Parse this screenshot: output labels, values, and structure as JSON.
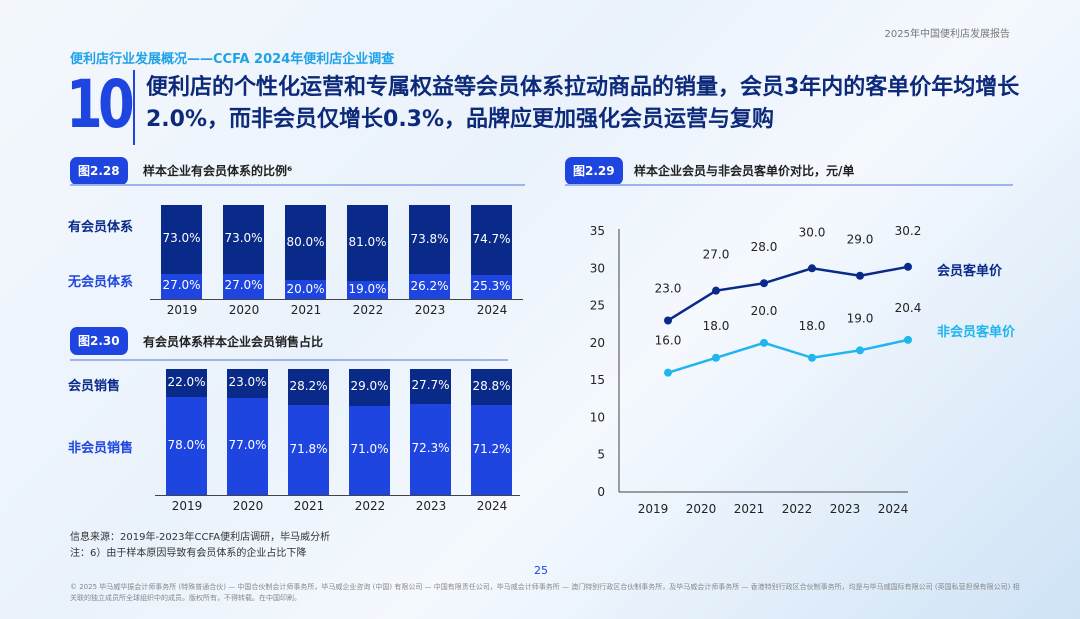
{
  "header": {
    "report": "2025年中国便利店发展报告",
    "section": "便利店行业发展概况——CCFA 2024年便利店企业调查",
    "number": "10",
    "headline": "便利店的个性化运营和专属权益等会员体系拉动商品的销量，会员3年内的客单价年均增长2.0%，而非会员仅增长0.3%，品牌应更加强化会员运营与复购"
  },
  "colors": {
    "dark": "#0a2a8a",
    "bright": "#1f45e0",
    "light_line": "#1fb5ee"
  },
  "chart_data": [
    {
      "id": "fig228",
      "tag": "图2.28",
      "title": "样本企业有会员体系的比例⁶",
      "type": "bar",
      "stacked": true,
      "categories": [
        "2019",
        "2020",
        "2021",
        "2022",
        "2023",
        "2024"
      ],
      "series": [
        {
          "name": "无会员体系",
          "values": [
            27.0,
            27.0,
            20.0,
            19.0,
            26.2,
            25.3
          ],
          "labels": [
            "27.0%",
            "27.0%",
            "20.0%",
            "19.0%",
            "26.2%",
            "25.3%"
          ]
        },
        {
          "name": "有会员体系",
          "values": [
            73.0,
            73.0,
            80.0,
            81.0,
            73.8,
            74.7
          ],
          "labels": [
            "73.0%",
            "73.0%",
            "80.0%",
            "81.0%",
            "73.8%",
            "74.7%"
          ]
        }
      ]
    },
    {
      "id": "fig230",
      "tag": "图2.30",
      "title": "有会员体系样本企业会员销售占比",
      "type": "bar",
      "stacked": true,
      "categories": [
        "2019",
        "2020",
        "2021",
        "2022",
        "2023",
        "2024"
      ],
      "series": [
        {
          "name": "非会员销售",
          "values": [
            78.0,
            77.0,
            71.8,
            71.0,
            72.3,
            71.2
          ],
          "labels": [
            "78.0%",
            "77.0%",
            "71.8%",
            "71.0%",
            "72.3%",
            "71.2%"
          ]
        },
        {
          "name": "会员销售",
          "values": [
            22.0,
            23.0,
            28.2,
            29.0,
            27.7,
            28.8
          ],
          "labels": [
            "22.0%",
            "23.0%",
            "28.2%",
            "29.0%",
            "27.7%",
            "28.8%"
          ]
        }
      ]
    },
    {
      "id": "fig229",
      "tag": "图2.29",
      "title": "样本企业会员与非会员客单价对比，元/单",
      "type": "line",
      "categories": [
        "2019",
        "2020",
        "2021",
        "2022",
        "2023",
        "2024"
      ],
      "ylim": [
        0,
        35
      ],
      "yticks": [
        "0",
        "5",
        "10",
        "15",
        "20",
        "25",
        "30",
        "35"
      ],
      "series": [
        {
          "name": "会员客单价",
          "values": [
            23.0,
            27.0,
            28.0,
            30.0,
            29.0,
            30.2
          ],
          "labels": [
            "23.0",
            "27.0",
            "28.0",
            "30.0",
            "29.0",
            "30.2"
          ]
        },
        {
          "name": "非会员客单价",
          "values": [
            16.0,
            18.0,
            20.0,
            18.0,
            19.0,
            20.4
          ],
          "labels": [
            "16.0",
            "18.0",
            "20.0",
            "18.0",
            "19.0",
            "20.4"
          ]
        }
      ]
    }
  ],
  "footer": {
    "source": "信息来源：2019年-2023年CCFA便利店调研，毕马威分析",
    "note": "注：6）由于样本原因导致有会员体系的企业占比下降",
    "page": "25",
    "legal": "© 2025 毕马威华振会计师事务所 (特殊普通合伙) — 中国合伙制会计师事务所，毕马威企业咨询 (中国) 有限公司 — 中国有限责任公司，毕马威会计师事务所 — 澳门特别行政区合伙制事务所，及毕马威会计师事务所 — 香港特别行政区合伙制事务所，均是与毕马威国际有限公司 (英国私营担保有限公司) 相关联的独立成员所全球组织中的成员。版权所有，不得转载。在中国印刷。"
  }
}
